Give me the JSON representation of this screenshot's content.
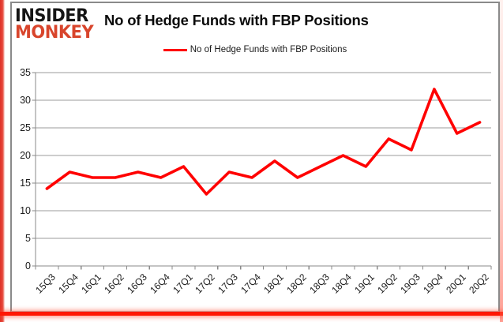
{
  "logo": {
    "line1": "INSIDER",
    "line2": "MONKEY"
  },
  "title": "No of Hedge Funds with FBP Positions",
  "legend": {
    "label": "No of Hedge Funds with FBP Positions",
    "line_color": "#ff0000"
  },
  "colors": {
    "series_red": "#ff0000",
    "gridline_gray": "#9b9b9b",
    "axis_gray": "#8a8a8a",
    "logo_red": "#d8452c",
    "frame_accent_red": "#e6473b"
  },
  "chart_data": {
    "type": "line",
    "title": "No of Hedge Funds with FBP Positions",
    "categories": [
      "15Q3",
      "15Q4",
      "16Q1",
      "16Q2",
      "16Q3",
      "16Q4",
      "17Q1",
      "17Q2",
      "17Q3",
      "17Q4",
      "18Q1",
      "18Q2",
      "18Q3",
      "18Q4",
      "19Q1",
      "19Q2",
      "19Q3",
      "19Q4",
      "20Q1",
      "20Q2"
    ],
    "series": [
      {
        "name": "No of Hedge Funds with FBP Positions",
        "color": "#ff0000",
        "values": [
          14,
          17,
          16,
          16,
          17,
          16,
          18,
          13,
          17,
          16,
          19,
          16,
          18,
          20,
          18,
          23,
          21,
          32,
          24,
          26
        ]
      }
    ],
    "xlabel": "",
    "ylabel": "",
    "ylim": [
      0,
      35
    ],
    "yticks": [
      0,
      5,
      10,
      15,
      20,
      25,
      30,
      35
    ],
    "grid": "horizontal",
    "legend_position": "top-center"
  }
}
